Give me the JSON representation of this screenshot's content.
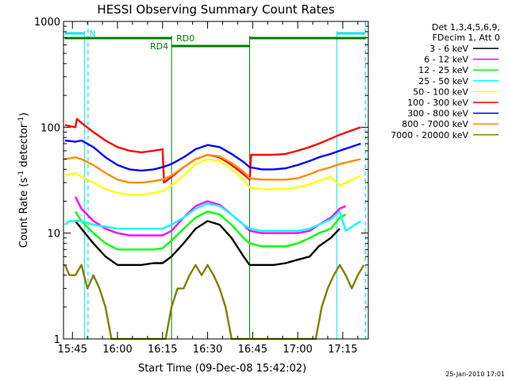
{
  "chart_data": {
    "type": "line",
    "title": "HESSI Observing Summary Count Rates",
    "xlabel": "Start Time (09-Dec-08 15:42:02)",
    "ylabel_main": "Count Rate (s",
    "ylabel_sup1": "-1",
    "ylabel_mid": " detector",
    "ylabel_sup2": "-1",
    "ylabel_end": ")",
    "x_start_min": 942.03,
    "x_end_min": 1043.5,
    "yscale": "log",
    "ylim": [
      1,
      1000
    ],
    "x_ticks": [
      {
        "min": 945,
        "label": "15:45"
      },
      {
        "min": 960,
        "label": "16:00"
      },
      {
        "min": 975,
        "label": "16:15"
      },
      {
        "min": 990,
        "label": "16:30"
      },
      {
        "min": 1005,
        "label": "16:45"
      },
      {
        "min": 1020,
        "label": "17:00"
      },
      {
        "min": 1035,
        "label": "17:15"
      }
    ],
    "y_ticks": [
      {
        "value": 1,
        "label": "1"
      },
      {
        "value": 10,
        "label": "10"
      },
      {
        "value": 100,
        "label": "100"
      },
      {
        "value": 1000,
        "label": "1000"
      }
    ],
    "legend_header": [
      "Det 1,3,4,5,6,9,",
      "FDecim 1, Att 0"
    ],
    "series": [
      {
        "name": "3 - 6 keV",
        "color": "#000000",
        "x": [
          942.5,
          946,
          948,
          952,
          956,
          960,
          964,
          968,
          972,
          975,
          978,
          982,
          986,
          990,
          994,
          998,
          1002,
          1004,
          1008,
          1012,
          1016,
          1020,
          1024,
          1027,
          1031,
          1034,
          1036
        ],
        "y": [
          null,
          13,
          11,
          8,
          6,
          5,
          5,
          5,
          5.2,
          5.2,
          6,
          8,
          11,
          13,
          12,
          9,
          6,
          5,
          5,
          5,
          5.2,
          5.6,
          6,
          7.5,
          9,
          11,
          null
        ]
      },
      {
        "name": "6 - 12 keV",
        "color": "#ff00ff",
        "x": [
          942.5,
          946,
          948,
          952,
          956,
          960,
          964,
          968,
          972,
          975,
          978,
          982,
          986,
          990,
          994,
          998,
          1002,
          1004,
          1008,
          1012,
          1016,
          1020,
          1024,
          1027,
          1031,
          1034,
          1036
        ],
        "y": [
          null,
          22,
          17,
          13,
          11,
          10,
          9.5,
          9.5,
          9.5,
          9.5,
          10.5,
          14,
          18,
          20,
          18.5,
          15,
          12,
          10.5,
          10,
          10,
          10,
          10,
          10.5,
          12,
          14,
          17,
          18
        ]
      },
      {
        "name": "12 - 25 keV",
        "color": "#00ff00",
        "x": [
          942.5,
          946,
          948,
          952,
          956,
          960,
          964,
          968,
          972,
          975,
          978,
          982,
          986,
          990,
          994,
          998,
          1002,
          1004,
          1008,
          1012,
          1016,
          1020,
          1024,
          1027,
          1031,
          1034,
          1036
        ],
        "y": [
          null,
          16,
          13,
          10,
          8,
          7,
          7,
          7,
          7,
          7.2,
          8.5,
          11,
          14,
          16,
          15,
          12,
          9,
          8,
          7.5,
          7.5,
          7.5,
          8,
          9,
          10,
          11,
          14,
          15
        ]
      },
      {
        "name": "25 - 50 keV",
        "color": "#00ffff",
        "x": [
          942.5,
          944,
          946,
          948,
          952,
          956,
          960,
          964,
          968,
          972,
          975,
          978,
          982,
          986,
          990,
          994,
          998,
          1002,
          1004,
          1008,
          1012,
          1016,
          1020,
          1024,
          1027,
          1031,
          1034,
          1036,
          1041
        ],
        "y": [
          12,
          13,
          13,
          13,
          12,
          11.5,
          11,
          11,
          11,
          11,
          11,
          12,
          14,
          17,
          19,
          18,
          15,
          12,
          11,
          10.5,
          10.5,
          10.5,
          10.5,
          11,
          12,
          13.5,
          16,
          10.5,
          13
        ]
      },
      {
        "name": "50 - 100 keV",
        "color": "#ffff00",
        "x": [
          942.5,
          946,
          948,
          952,
          956,
          960,
          964,
          968,
          972,
          975,
          978,
          982,
          986,
          990,
          994,
          998,
          1002,
          1004,
          1008,
          1012,
          1016,
          1020,
          1024,
          1027,
          1031,
          1034,
          1041
        ],
        "y": [
          35,
          37,
          34,
          30,
          26,
          24,
          23,
          23,
          24,
          25,
          28,
          35,
          45,
          50,
          48,
          40,
          32,
          27,
          26,
          26,
          26,
          27,
          29,
          31,
          34,
          28,
          35
        ]
      },
      {
        "name": "100 - 300 keV",
        "color": "#ff0000",
        "x": [
          942.5,
          946,
          946.5,
          948,
          952,
          956,
          960,
          964,
          968,
          972,
          975,
          975.5,
          978,
          982,
          986,
          990,
          994,
          998,
          1002,
          1004,
          1004.5,
          1008,
          1012,
          1016,
          1020,
          1024,
          1027,
          1031,
          1034,
          1041
        ],
        "y": [
          105,
          100,
          120,
          110,
          90,
          75,
          65,
          60,
          58,
          60,
          62,
          30,
          34,
          42,
          50,
          55,
          52,
          44,
          36,
          32,
          55,
          55,
          55,
          56,
          60,
          65,
          70,
          78,
          85,
          100
        ]
      },
      {
        "name": "300 - 800 keV",
        "color": "#0000ff",
        "x": [
          942.5,
          946,
          948,
          952,
          956,
          960,
          964,
          968,
          972,
          975,
          978,
          982,
          986,
          990,
          994,
          998,
          1002,
          1004,
          1008,
          1012,
          1016,
          1020,
          1024,
          1027,
          1031,
          1034,
          1041
        ],
        "y": [
          75,
          73,
          75,
          65,
          52,
          44,
          40,
          39,
          40,
          42,
          45,
          52,
          62,
          68,
          65,
          56,
          47,
          42,
          40,
          40,
          41,
          44,
          48,
          52,
          56,
          60,
          70
        ]
      },
      {
        "name": "800 - 7000 keV",
        "color": "#ff8c00",
        "x": [
          942.5,
          946,
          948,
          952,
          956,
          960,
          964,
          968,
          972,
          975,
          978,
          982,
          986,
          990,
          994,
          998,
          1002,
          1004,
          1008,
          1012,
          1016,
          1020,
          1024,
          1027,
          1031,
          1034,
          1041
        ],
        "y": [
          50,
          52,
          50,
          44,
          37,
          32,
          30,
          30,
          31,
          32,
          35,
          42,
          50,
          55,
          53,
          46,
          38,
          33,
          32,
          32,
          32,
          33,
          36,
          39,
          42,
          45,
          50
        ]
      },
      {
        "name": "7000 - 20000 keV",
        "color": "#808000",
        "x": [
          942.5,
          944,
          946,
          948,
          950,
          952,
          954,
          956,
          958,
          960,
          962,
          964,
          966,
          968,
          970,
          972,
          974,
          976,
          978,
          980,
          982,
          984,
          986,
          988,
          990,
          992,
          994,
          996,
          998,
          1000,
          1002,
          1004,
          1006,
          1008,
          1010,
          1012,
          1014,
          1016,
          1018,
          1020,
          1022,
          1024,
          1026,
          1028,
          1030,
          1032,
          1034,
          1036,
          1038,
          1040,
          1042
        ],
        "y": [
          5,
          4,
          4,
          5,
          3,
          4,
          3,
          2,
          1,
          1,
          1,
          1,
          1,
          1,
          1,
          1,
          1,
          1,
          2,
          3,
          3,
          4,
          5,
          4,
          5,
          4,
          3,
          2,
          1,
          1,
          1,
          1,
          1,
          1,
          1,
          1,
          1,
          1,
          1,
          1,
          1,
          1,
          1,
          2,
          3,
          4,
          5,
          4,
          3,
          4,
          5
        ]
      }
    ],
    "annotations": {
      "N": {
        "label": "N",
        "segments": [
          [
            942.5,
            949
          ],
          [
            1033,
            1042.5
          ]
        ]
      },
      "RD0": {
        "label": "RD0",
        "segments": [
          [
            942.5,
            978
          ],
          [
            1004,
            1042.5
          ]
        ]
      },
      "RD4": {
        "label": "RD4",
        "segments": [
          [
            978,
            1004
          ]
        ]
      },
      "dashed_times": [
        950.2,
        1042.5
      ]
    }
  },
  "footer": {
    "timestamp": "25-Jan-2010 17:01"
  }
}
